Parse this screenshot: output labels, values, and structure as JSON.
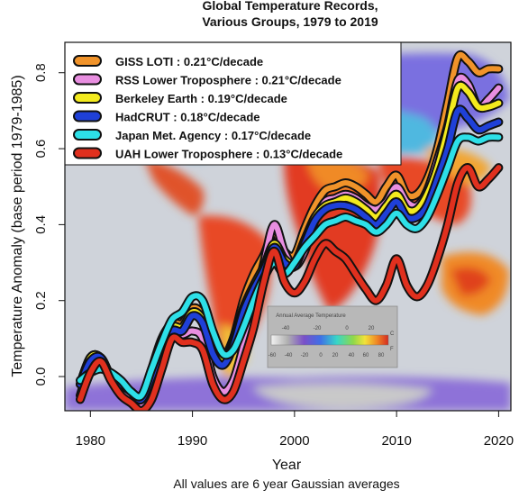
{
  "chart_data": {
    "type": "line",
    "title_lines": [
      "Global Temperature Records,",
      "Various Groups, 1979 to 2019"
    ],
    "xlabel": "Year",
    "ylabel": "Temperature Anomaly (base period 1979-1985)",
    "footnote": "All values are 6 year Gaussian averages",
    "xlim": [
      1977.5,
      2021.2
    ],
    "ylim": [
      -0.09,
      0.88
    ],
    "x_ticks": [
      "1980",
      "1990",
      "2000",
      "2010",
      "2020"
    ],
    "y_ticks": [
      "0.0",
      "0.2",
      "0.4",
      "0.6",
      "0.8"
    ],
    "legend_position": "top-left",
    "background": "world map of annual average temperature",
    "inset_scale": {
      "title": "Annual Average Temperature",
      "celsius_ticks": [
        "-40",
        "-20",
        "0",
        "20"
      ],
      "celsius_unit": "C",
      "fahrenheit_ticks": [
        "-60",
        "-40",
        "-20",
        "0",
        "20",
        "40",
        "60",
        "80"
      ],
      "fahrenheit_unit": "F"
    },
    "x": [
      1979,
      1980,
      1981,
      1982,
      1983,
      1984,
      1985,
      1986,
      1987,
      1988,
      1989,
      1990,
      1991,
      1992,
      1993,
      1994,
      1995,
      1996,
      1997,
      1998,
      1999,
      2000,
      2001,
      2002,
      2003,
      2004,
      2005,
      2006,
      2007,
      2008,
      2009,
      2010,
      2011,
      2012,
      2013,
      2014,
      2015,
      2016,
      2017,
      2018,
      2019,
      2020
    ],
    "series": [
      {
        "name": "GISS LOTI : 0.21°C/decade",
        "color": "#f0932a",
        "values": [
          -0.02,
          0.05,
          0.05,
          0.0,
          -0.02,
          -0.04,
          -0.06,
          0.02,
          0.1,
          0.14,
          0.14,
          0.18,
          0.16,
          0.07,
          0.05,
          0.1,
          0.2,
          0.27,
          0.32,
          0.38,
          0.33,
          0.32,
          0.39,
          0.45,
          0.49,
          0.5,
          0.51,
          0.5,
          0.48,
          0.46,
          0.5,
          0.53,
          0.48,
          0.48,
          0.52,
          0.6,
          0.72,
          0.84,
          0.83,
          0.8,
          0.81,
          0.81
        ]
      },
      {
        "name": "RSS Lower Troposphere : 0.21°C/decade",
        "color": "#e88ee0",
        "values": [
          -0.05,
          0.03,
          0.05,
          0.0,
          -0.03,
          -0.05,
          -0.08,
          -0.04,
          0.04,
          0.12,
          0.11,
          0.12,
          0.1,
          0.0,
          -0.04,
          -0.01,
          0.08,
          0.18,
          0.3,
          0.4,
          0.33,
          0.29,
          0.33,
          0.41,
          0.46,
          0.47,
          0.48,
          0.47,
          0.45,
          0.44,
          0.46,
          0.5,
          0.46,
          0.45,
          0.49,
          0.57,
          0.66,
          0.78,
          0.77,
          0.71,
          0.73,
          0.76
        ]
      },
      {
        "name": "Berkeley Earth : 0.19°C/decade",
        "color": "#f3ea1e",
        "values": [
          -0.02,
          0.05,
          0.05,
          0.0,
          -0.02,
          -0.04,
          -0.06,
          0.01,
          0.08,
          0.13,
          0.13,
          0.17,
          0.15,
          0.07,
          0.04,
          0.09,
          0.18,
          0.24,
          0.29,
          0.35,
          0.31,
          0.3,
          0.36,
          0.42,
          0.45,
          0.46,
          0.47,
          0.46,
          0.44,
          0.42,
          0.45,
          0.48,
          0.44,
          0.44,
          0.48,
          0.55,
          0.65,
          0.76,
          0.75,
          0.71,
          0.71,
          0.72
        ]
      },
      {
        "name": "HadCRUT : 0.18°C/decade",
        "color": "#1f40d8",
        "values": [
          -0.02,
          0.04,
          0.05,
          0.0,
          -0.02,
          -0.04,
          -0.06,
          0.0,
          0.07,
          0.12,
          0.12,
          0.16,
          0.14,
          0.06,
          0.03,
          0.08,
          0.17,
          0.23,
          0.28,
          0.34,
          0.3,
          0.29,
          0.35,
          0.41,
          0.44,
          0.45,
          0.45,
          0.44,
          0.42,
          0.4,
          0.43,
          0.46,
          0.42,
          0.42,
          0.45,
          0.52,
          0.6,
          0.7,
          0.68,
          0.65,
          0.66,
          0.67
        ]
      },
      {
        "name": "Japan Met. Agency : 0.17°C/decade",
        "color": "#2de0e8",
        "values": [
          -0.01,
          0.01,
          0.02,
          0.01,
          -0.01,
          -0.04,
          -0.05,
          0.02,
          0.09,
          0.15,
          0.17,
          0.21,
          0.2,
          0.12,
          0.06,
          0.07,
          0.13,
          0.2,
          0.26,
          0.3,
          0.27,
          0.3,
          0.34,
          0.37,
          0.4,
          0.41,
          0.42,
          0.41,
          0.4,
          0.38,
          0.4,
          0.43,
          0.4,
          0.39,
          0.42,
          0.48,
          0.55,
          0.62,
          0.63,
          0.62,
          0.63,
          0.63
        ]
      },
      {
        "name": "UAH Lower Troposphere : 0.13°C/decade",
        "color": "#e0301e",
        "values": [
          -0.06,
          0.01,
          0.04,
          -0.01,
          -0.05,
          -0.07,
          -0.09,
          -0.06,
          0.02,
          0.1,
          0.09,
          0.09,
          0.07,
          -0.02,
          -0.06,
          -0.04,
          0.04,
          0.13,
          0.25,
          0.33,
          0.25,
          0.22,
          0.25,
          0.31,
          0.35,
          0.33,
          0.31,
          0.27,
          0.23,
          0.2,
          0.24,
          0.31,
          0.24,
          0.21,
          0.24,
          0.31,
          0.4,
          0.51,
          0.55,
          0.5,
          0.52,
          0.55
        ]
      }
    ]
  }
}
